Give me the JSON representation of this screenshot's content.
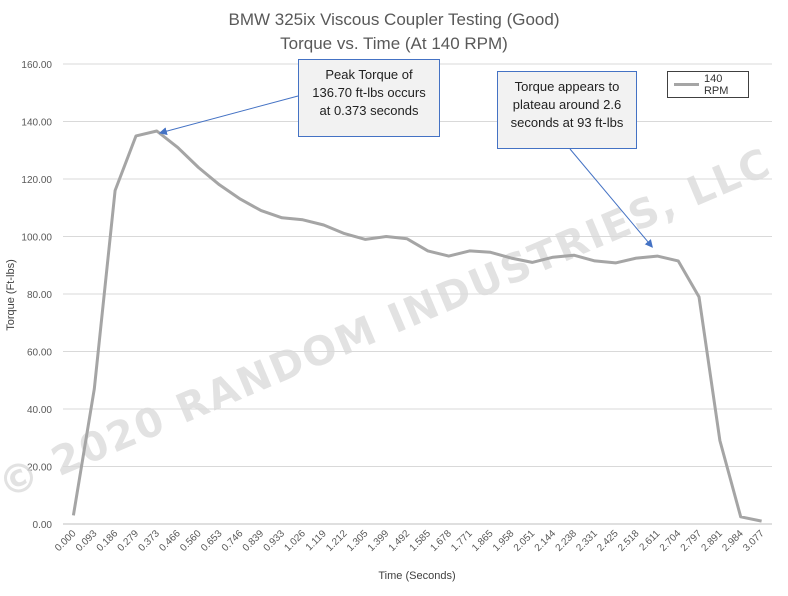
{
  "chart_data": {
    "type": "line",
    "title_line1": "BMW 325ix Viscous Coupler Testing (Good)",
    "title_line2": "Torque vs. Time  (At 140 RPM)",
    "xlabel": "Time (Seconds)",
    "ylabel": "Torque (Ft-lbs)",
    "ylim": [
      0,
      160
    ],
    "y_ticks": [
      "0.00",
      "20.00",
      "40.00",
      "60.00",
      "80.00",
      "100.00",
      "120.00",
      "140.00",
      "160.00"
    ],
    "categories": [
      "0.000",
      "0.093",
      "0.186",
      "0.279",
      "0.373",
      "0.466",
      "0.560",
      "0.653",
      "0.746",
      "0.839",
      "0.933",
      "1.026",
      "1.119",
      "1.212",
      "1.305",
      "1.399",
      "1.492",
      "1.585",
      "1.678",
      "1.771",
      "1.865",
      "1.958",
      "2.051",
      "2.144",
      "2.238",
      "2.331",
      "2.425",
      "2.518",
      "2.611",
      "2.704",
      "2.797",
      "2.891",
      "2.984",
      "3.077"
    ],
    "series": [
      {
        "name": "140 RPM",
        "color": "#a5a5a5",
        "values": [
          3,
          47,
          116,
          135,
          136.7,
          131,
          124,
          118,
          113,
          109,
          106.5,
          105.8,
          104,
          101,
          99,
          100,
          99.2,
          95,
          93.2,
          95,
          94.5,
          92.5,
          91,
          92.8,
          93.5,
          91.5,
          90.8,
          92.5,
          93.2,
          91.5,
          79,
          29,
          2.5,
          1
        ]
      }
    ],
    "grid": "horizontal",
    "legend_position": "top-right",
    "annotations": [
      {
        "text": "Peak Torque of 136.70 ft-lbs occurs at 0.373 seconds",
        "point_index": 4
      },
      {
        "text": "Torque appears to plateau around 2.6 seconds at 93 ft-lbs",
        "point_index": 28
      }
    ],
    "watermark": "© 2020 RANDOM INDUSTRIES, LLC"
  }
}
